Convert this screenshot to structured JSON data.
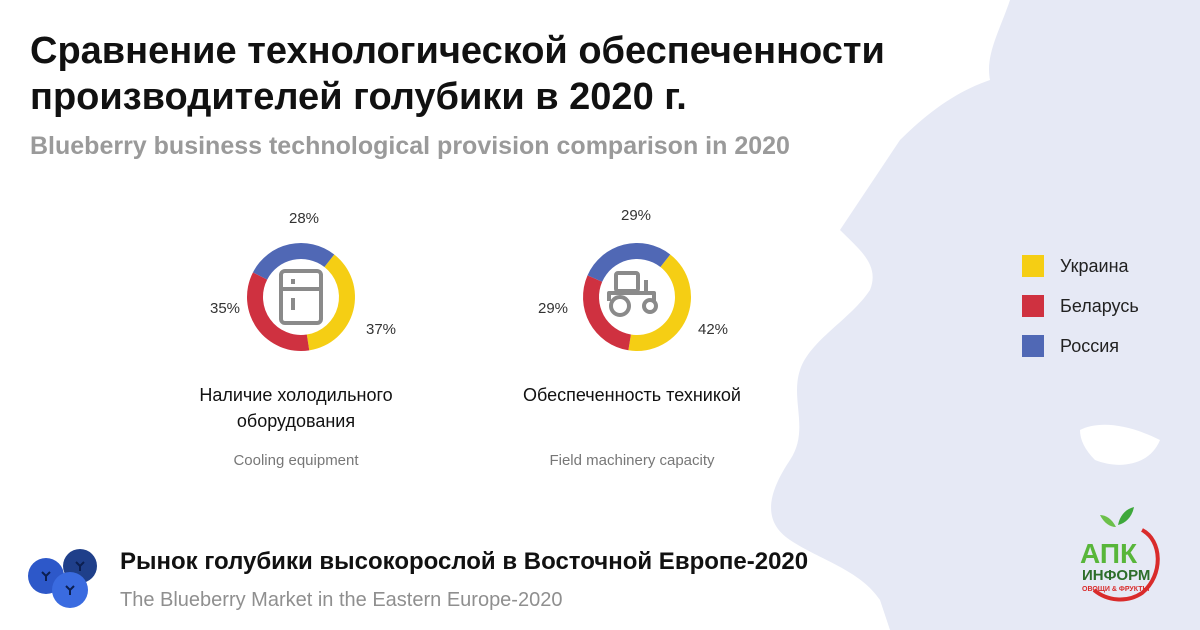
{
  "header": {
    "title_line1": "Сравнение технологической обеспеченности",
    "title_line2": "производителей голубики в 2020 г.",
    "subtitle": "Blueberry business technological provision comparison in 2020"
  },
  "legend": {
    "items": [
      {
        "label": "Украина",
        "color": "#F5CE14"
      },
      {
        "label": "Беларусь",
        "color": "#CF3140"
      },
      {
        "label": "Россия",
        "color": "#5068B5"
      }
    ]
  },
  "charts": [
    {
      "label": "Наличие холодильного оборудования",
      "label_en": "Cooling equipment",
      "icon": "refrigerator-icon",
      "pct_labels": {
        "ukraine": "37%",
        "belarus": "35%",
        "russia": "28%"
      }
    },
    {
      "label": "Обеспеченность техникой",
      "label_en": "Field machinery capacity",
      "icon": "tractor-icon",
      "pct_labels": {
        "ukraine": "42%",
        "belarus": "29%",
        "russia": "29%"
      }
    }
  ],
  "chart_data": [
    {
      "type": "pie",
      "title": "Наличие холодильного оборудования",
      "categories": [
        "Украина",
        "Беларусь",
        "Россия"
      ],
      "values": [
        37,
        35,
        28
      ],
      "colors": [
        "#F5CE14",
        "#CF3140",
        "#5068B5"
      ],
      "legend": "right"
    },
    {
      "type": "pie",
      "title": "Обеспеченность техникой",
      "categories": [
        "Украина",
        "Беларусь",
        "Россия"
      ],
      "values": [
        42,
        29,
        29
      ],
      "colors": [
        "#F5CE14",
        "#CF3140",
        "#5068B5"
      ],
      "legend": "right"
    }
  ],
  "footer": {
    "title": "Рынок голубики высокорослой в Восточной Европе-2020",
    "subtitle": "The Blueberry Market in the Eastern Europe-2020"
  },
  "logo": {
    "main": "АПК",
    "sub": "ИНФОРМ",
    "tagline": "ОВОЩИ & ФРУКТЫ"
  }
}
